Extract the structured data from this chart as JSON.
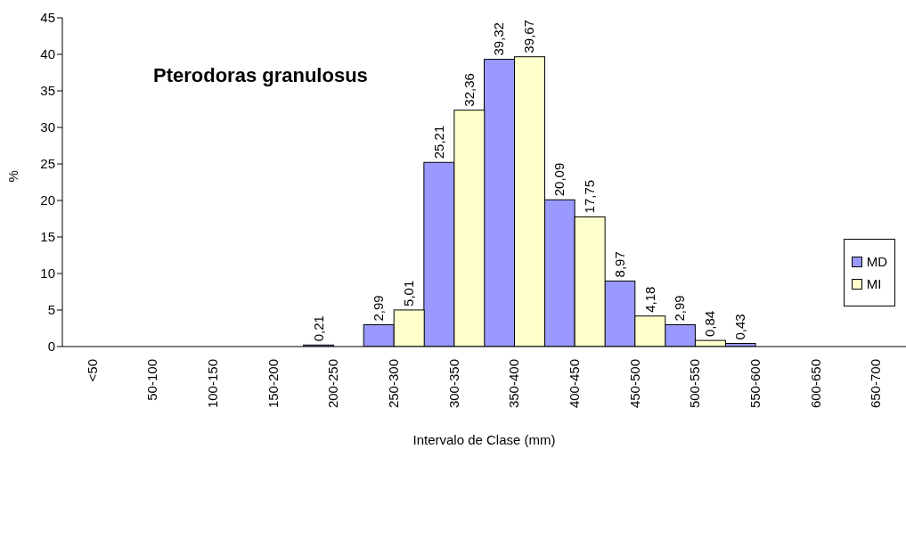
{
  "chart_data": {
    "type": "bar",
    "title": "Pterodoras granulosus",
    "xlabel": "Intervalo de Clase (mm)",
    "ylabel": "%",
    "categories": [
      "<50",
      "50-100",
      "100-150",
      "150-200",
      "200-250",
      "250-300",
      "300-350",
      "350-400",
      "400-450",
      "450-500",
      "500-550",
      "550-600",
      "600-650",
      "650-700"
    ],
    "series": [
      {
        "name": "MD",
        "color": "#9999ff",
        "values": [
          0,
          0,
          0,
          0,
          0.21,
          2.99,
          25.21,
          39.32,
          20.09,
          8.97,
          2.99,
          0.43,
          0,
          0
        ],
        "value_labels": [
          null,
          null,
          null,
          null,
          "0,21",
          "2,99",
          "25,21",
          "39,32",
          "20,09",
          "8,97",
          "2,99",
          "0,43",
          null,
          null
        ]
      },
      {
        "name": "MI",
        "color": "#ffffcc",
        "values": [
          0,
          0,
          0,
          0,
          0,
          5.01,
          32.36,
          39.67,
          17.75,
          4.18,
          0.84,
          0,
          0,
          0
        ],
        "value_labels": [
          null,
          null,
          null,
          null,
          null,
          "5,01",
          "32,36",
          "39,67",
          "17,75",
          "4,18",
          "0,84",
          null,
          null,
          null
        ]
      }
    ],
    "ylim": [
      0,
      45
    ],
    "yticks": [
      0,
      5,
      10,
      15,
      20,
      25,
      30,
      35,
      40,
      45
    ],
    "grid": false,
    "legend": "right"
  }
}
